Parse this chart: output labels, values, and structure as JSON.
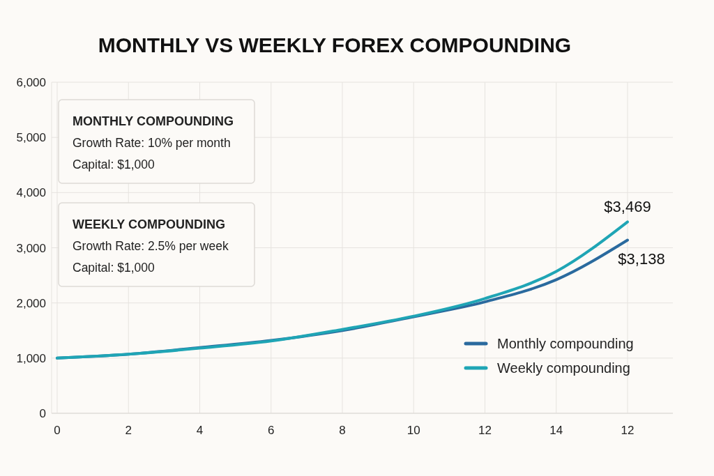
{
  "chart_data": {
    "type": "line",
    "title": "MONTHLY VS WEEKLY FOREX COMPOUNDING",
    "categories": [
      "0",
      "2",
      "4",
      "6",
      "8",
      "10",
      "12",
      "14",
      "12"
    ],
    "ylim": [
      0,
      6000
    ],
    "yticks": [
      0,
      {
        "value": 1000,
        "label": "1,000"
      },
      {
        "value": 2000,
        "label": "2,000"
      },
      {
        "value": 3000,
        "label": "3,000"
      },
      {
        "value": 4000,
        "label": "4,000"
      },
      {
        "value": 5000,
        "label": "5,000"
      },
      {
        "value": 6000,
        "label": "6,000"
      }
    ],
    "series": [
      {
        "name": "Monthly compounding",
        "color": "#2a6a9e",
        "values": [
          1000,
          1070,
          1190,
          1320,
          1500,
          1750,
          2020,
          2420,
          3138
        ],
        "value_labels": [
          null,
          null,
          null,
          null,
          null,
          null,
          null,
          null,
          "$3,138"
        ]
      },
      {
        "name": "Weekly compounding",
        "color": "#1fa5b5",
        "values": [
          1000,
          1070,
          1180,
          1310,
          1520,
          1760,
          2080,
          2570,
          3469
        ],
        "value_labels": [
          null,
          null,
          null,
          null,
          null,
          null,
          null,
          null,
          "$3,469"
        ]
      }
    ],
    "annotations": [
      "MONTHLY COMPOUNDING",
      "Growth Rate: 10% per month",
      "Capital: $1,000",
      "WEEKLY COMPOUNDING",
      "Growth Rate: 2.5% per week",
      "Capital: $1,000"
    ],
    "grid": true,
    "legend": "bottom right",
    "line_style": "solid"
  }
}
